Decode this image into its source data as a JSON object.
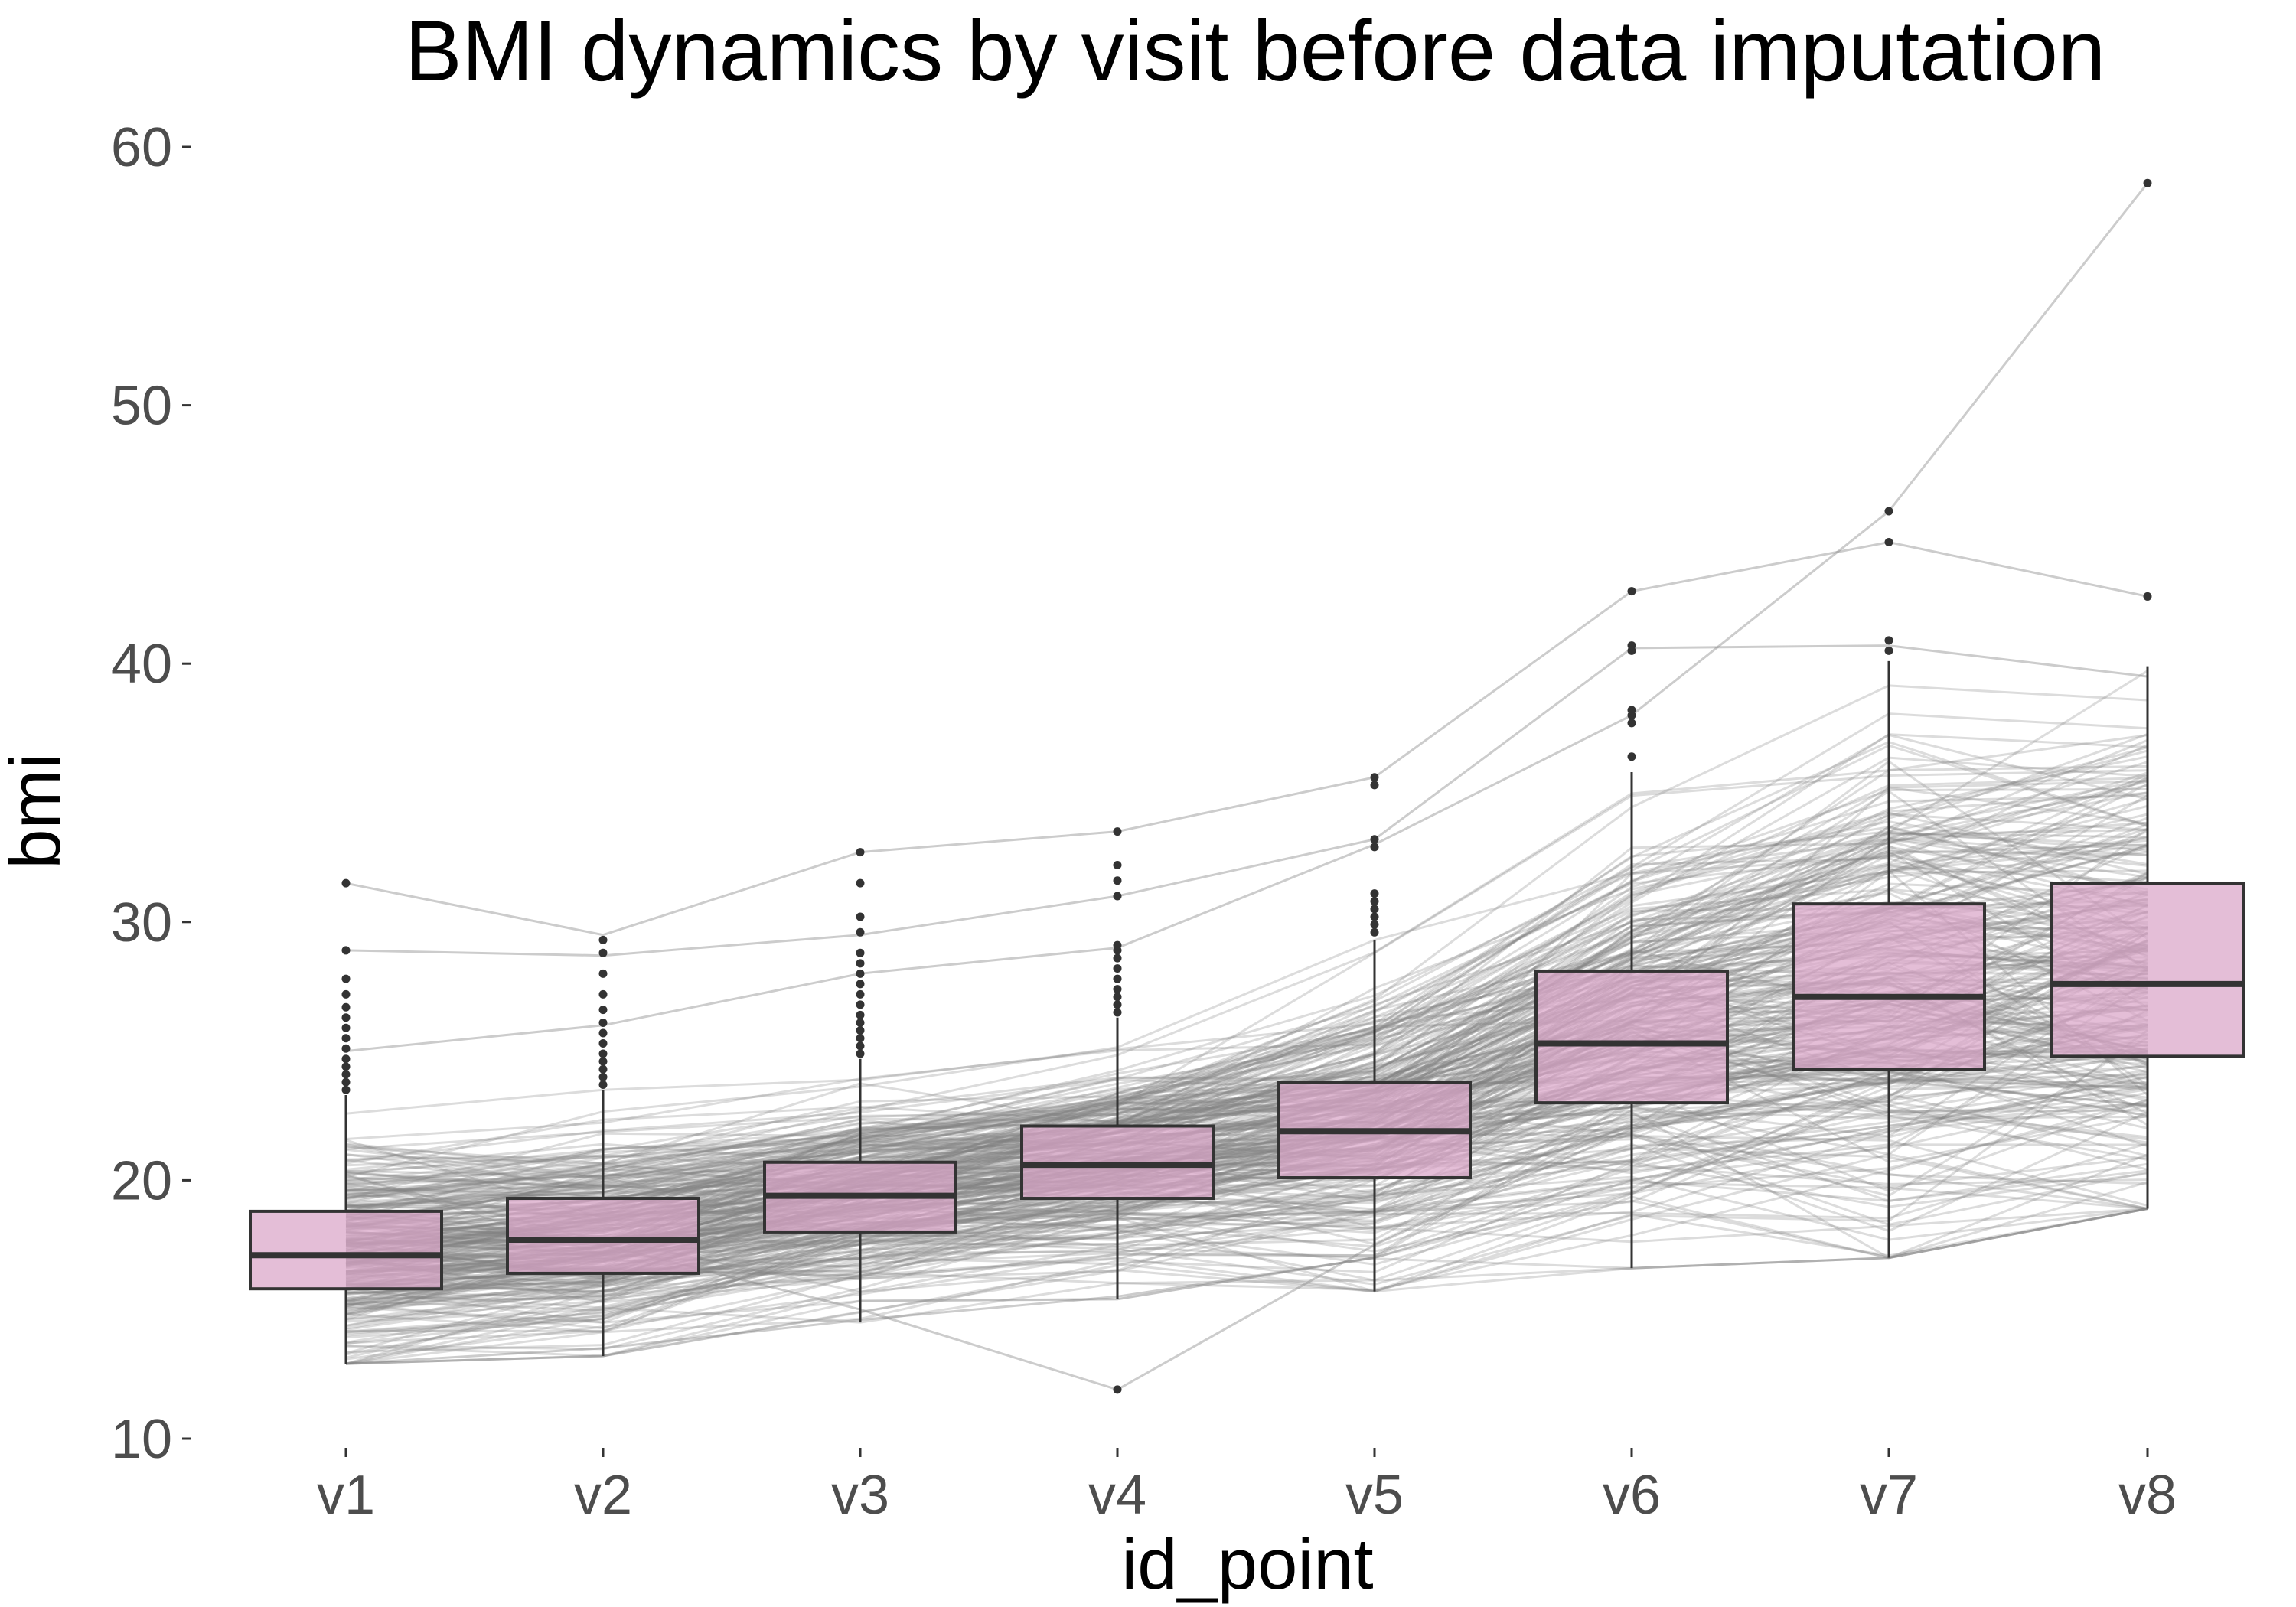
{
  "chart_data": {
    "type": "box",
    "title": "BMI dynamics by visit before data imputation",
    "xlabel": "id_point",
    "ylabel": "bmi",
    "categories": [
      "v1",
      "v2",
      "v3",
      "v4",
      "v5",
      "v6",
      "v7",
      "v8"
    ],
    "y_ticks": [
      10,
      20,
      30,
      40,
      50,
      60
    ],
    "ylim": [
      10,
      60
    ],
    "grid": false,
    "legend": "none",
    "colors": {
      "box_fill": "#d9a3c6",
      "box_stroke": "#333333",
      "trajectory": "#808080",
      "outlier": "#333333",
      "axis_text": "#4d4d4d"
    },
    "boxes": [
      {
        "category": "v1",
        "whisker_low": 12.9,
        "q1": 15.8,
        "median": 17.1,
        "q3": 18.8,
        "whisker_high": 23.3,
        "outliers": [
          23.5,
          23.8,
          24.1,
          24.4,
          24.7,
          25.1,
          25.5,
          25.9,
          26.3,
          26.7,
          27.2,
          27.8,
          28.9,
          31.5
        ]
      },
      {
        "category": "v2",
        "whisker_low": 13.2,
        "q1": 16.4,
        "median": 17.7,
        "q3": 19.3,
        "whisker_high": 23.5,
        "outliers": [
          23.7,
          24.0,
          24.3,
          24.6,
          24.9,
          25.3,
          25.7,
          26.1,
          26.6,
          27.2,
          28.0,
          28.8,
          29.3
        ]
      },
      {
        "category": "v3",
        "whisker_low": 14.5,
        "q1": 18.0,
        "median": 19.4,
        "q3": 20.7,
        "whisker_high": 24.7,
        "outliers": [
          24.9,
          25.2,
          25.5,
          25.8,
          26.1,
          26.4,
          26.8,
          27.2,
          27.6,
          28.0,
          28.4,
          28.8,
          29.6,
          30.2,
          31.5,
          32.7
        ]
      },
      {
        "category": "v4",
        "whisker_low": 15.4,
        "q1": 19.3,
        "median": 20.6,
        "q3": 22.1,
        "whisker_high": 26.3,
        "outliers": [
          11.9,
          26.5,
          26.8,
          27.1,
          27.4,
          27.8,
          28.2,
          28.6,
          28.9,
          29.1,
          31.0,
          31.6,
          32.2,
          33.5
        ]
      },
      {
        "category": "v5",
        "whisker_low": 15.7,
        "q1": 20.1,
        "median": 21.9,
        "q3": 23.8,
        "whisker_high": 29.3,
        "outliers": [
          29.6,
          29.9,
          30.2,
          30.5,
          30.8,
          31.1,
          32.9,
          33.2,
          35.3,
          35.6
        ]
      },
      {
        "category": "v6",
        "whisker_low": 16.6,
        "q1": 23.0,
        "median": 25.3,
        "q3": 28.1,
        "whisker_high": 35.8,
        "outliers": [
          36.4,
          37.7,
          38.0,
          38.2,
          40.5,
          40.7,
          42.8
        ]
      },
      {
        "category": "v7",
        "whisker_low": 17.0,
        "q1": 24.3,
        "median": 27.1,
        "q3": 30.7,
        "whisker_high": 40.1,
        "outliers": [
          40.5,
          40.9,
          44.7,
          45.9
        ]
      },
      {
        "category": "v8",
        "whisker_low": 18.9,
        "q1": 24.8,
        "median": 27.6,
        "q3": 31.5,
        "whisker_high": 39.9,
        "outliers": [
          42.6,
          58.6
        ]
      }
    ],
    "trajectories": {
      "description_of_series": "individual patient bmi trajectories across visits (semi-transparent grey lines)",
      "approx_count": 300,
      "highlighted": [
        [
          12.9,
          13.5,
          14.6,
          15.5,
          17.0,
          20.0,
          22.0,
          24.0
        ],
        [
          28.9,
          28.7,
          29.5,
          31.0,
          33.2,
          40.6,
          40.7,
          39.5
        ],
        [
          31.5,
          29.5,
          32.7,
          33.5,
          35.6,
          42.8,
          44.7,
          42.6
        ],
        [
          25.0,
          26.0,
          28.0,
          29.0,
          33.0,
          38.0,
          45.9,
          58.6
        ],
        [
          18.0,
          17.5,
          15.0,
          11.9,
          17.5,
          22.0,
          24.0,
          26.0
        ]
      ]
    }
  }
}
